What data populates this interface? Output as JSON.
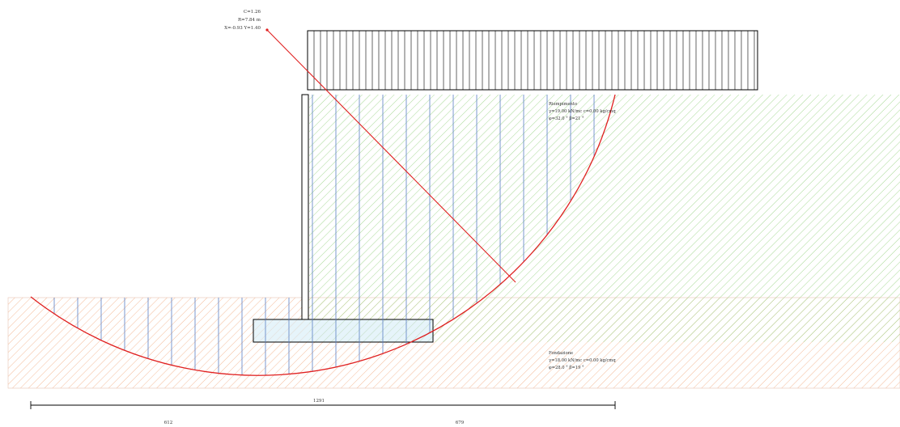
{
  "circle_info": {
    "line1": "C=1.26",
    "line2": "R=7.84 m",
    "line3": "X=-0.93  Y=1.40"
  },
  "backfill": {
    "title": "Riempimento",
    "line1": "γ=19.00 kN/mc c=0.00 kg/cmq",
    "line2": "φ=32.0 °  β=21 °",
    "hatch_color": "#9ed58a"
  },
  "foundation": {
    "title": "Fondazione",
    "line1": "γ=18.00 kN/mc c=0.00 kg/cmq",
    "line2": "φ=28.0 °  β=19 °",
    "hatch_color": "#f3b58f"
  },
  "dimensions": {
    "total": "1291",
    "left": "612",
    "right": "679"
  },
  "colors": {
    "slip_circle": "#e02020",
    "slice_lines": "#5b7fc4",
    "outline": "#000000"
  }
}
